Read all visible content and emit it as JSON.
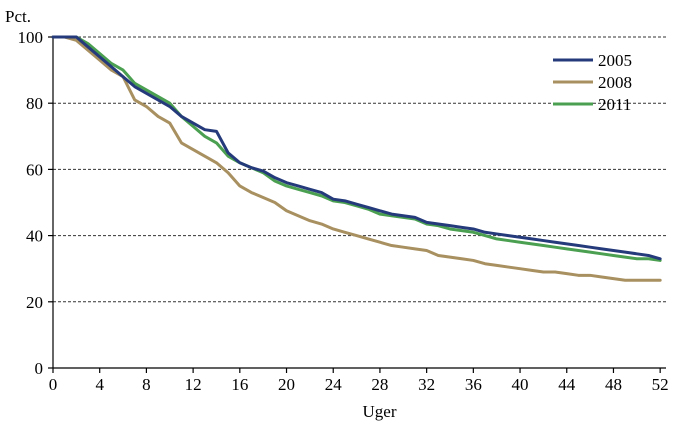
{
  "chart_data": {
    "type": "line",
    "ylabel": "Pct.",
    "xlabel": "Uger",
    "xlim": [
      0,
      52.5
    ],
    "ylim": [
      0,
      100
    ],
    "x_ticks": [
      0,
      4,
      8,
      12,
      16,
      20,
      24,
      28,
      32,
      36,
      40,
      44,
      48,
      52
    ],
    "y_ticks": [
      0,
      20,
      40,
      60,
      80,
      100
    ],
    "grid": "horizontal dashed",
    "legend_position": "top-right",
    "x": [
      0,
      1,
      2,
      3,
      4,
      5,
      6,
      7,
      8,
      9,
      10,
      11,
      12,
      13,
      14,
      15,
      16,
      17,
      18,
      19,
      20,
      21,
      22,
      23,
      24,
      25,
      26,
      27,
      28,
      29,
      30,
      31,
      32,
      33,
      34,
      35,
      36,
      37,
      38,
      39,
      40,
      41,
      42,
      43,
      44,
      45,
      46,
      47,
      48,
      49,
      50,
      51,
      52
    ],
    "series": [
      {
        "name": "2005",
        "color": "#243a7a",
        "values": [
          100,
          100,
          100,
          97,
          94,
          91,
          88,
          85,
          83,
          81,
          79,
          76,
          74,
          72,
          71.5,
          65,
          62,
          60.5,
          59.5,
          57.5,
          56,
          55,
          54,
          53,
          51,
          50.5,
          49.5,
          48.5,
          47.5,
          46.5,
          46,
          45.5,
          44,
          43.5,
          43,
          42.5,
          42,
          41,
          40.5,
          40,
          39.5,
          39,
          38.5,
          38,
          37.5,
          37,
          36.5,
          36,
          35.5,
          35,
          34.5,
          34,
          33
        ]
      },
      {
        "name": "2008",
        "color": "#a89060",
        "values": [
          100,
          100,
          99,
          96,
          93,
          90,
          88,
          81,
          79,
          76,
          74,
          68,
          66,
          64,
          62,
          59,
          55,
          53,
          51.5,
          50,
          47.5,
          46,
          44.5,
          43.5,
          42,
          41,
          40,
          39,
          38,
          37,
          36.5,
          36,
          35.5,
          34,
          33.5,
          33,
          32.5,
          31.5,
          31,
          30.5,
          30,
          29.5,
          29,
          29,
          28.5,
          28,
          28,
          27.5,
          27,
          26.5,
          26.5,
          26.5,
          26.5
        ]
      },
      {
        "name": "2011",
        "color": "#4aa050",
        "values": [
          100,
          100,
          100,
          98,
          95,
          92,
          90,
          86,
          84,
          82,
          80,
          76,
          73,
          70,
          68,
          64,
          62,
          60.5,
          59,
          56.5,
          55,
          54,
          53,
          52,
          50.5,
          50,
          49,
          48,
          46.5,
          46,
          45.5,
          45,
          43.5,
          43,
          42,
          41.5,
          41,
          40,
          39,
          38.5,
          38,
          37.5,
          37,
          36.5,
          36,
          35.5,
          35,
          34.5,
          34,
          33.5,
          33,
          33,
          32.5
        ]
      }
    ]
  }
}
